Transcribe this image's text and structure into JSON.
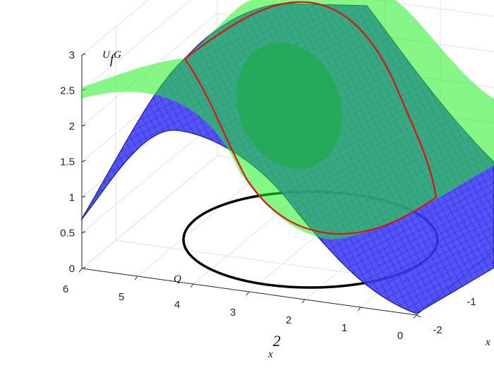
{
  "chart_data": {
    "type": "surface3d",
    "zlim": [
      0,
      3
    ],
    "zticks": [
      0,
      0.5,
      1,
      1.5,
      2,
      2.5,
      3
    ],
    "xlim": [
      0,
      6
    ],
    "xticks": [
      0,
      1,
      2,
      3,
      4,
      5,
      6
    ],
    "ylim": [
      -2,
      2
    ],
    "yticks": [
      -2,
      -1
    ],
    "xlabel": {
      "base": "x",
      "sup": "2"
    },
    "ylabel": {
      "base": "x"
    },
    "annotations": [
      {
        "base": "U",
        "sub": "f",
        "tail": "G"
      },
      {
        "base": "Q"
      }
    ],
    "grid": true
  }
}
